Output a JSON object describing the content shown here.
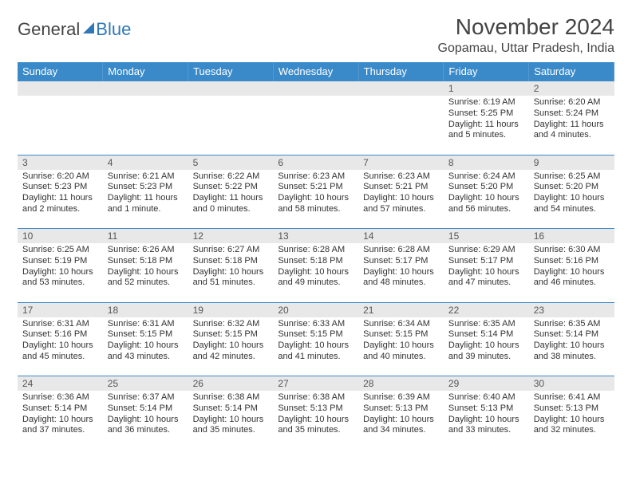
{
  "brand": {
    "part1": "General",
    "part2": "Blue"
  },
  "title": "November 2024",
  "title_fontsize": 28,
  "location": "Gopamau, Uttar Pradesh, India",
  "location_fontsize": 16,
  "colors": {
    "header_bg": "#3a8ac9",
    "header_fg": "#ffffff",
    "daynum_bg": "#e8e8e8",
    "border": "#3a8ac9",
    "text": "#333333",
    "brand_gray": "#444444",
    "brand_blue": "#2f78b7"
  },
  "day_header_fontsize": 13,
  "cell_fontsize": 11,
  "day_headers": [
    "Sunday",
    "Monday",
    "Tuesday",
    "Wednesday",
    "Thursday",
    "Friday",
    "Saturday"
  ],
  "weeks": [
    [
      null,
      null,
      null,
      null,
      null,
      {
        "n": "1",
        "sr": "6:19 AM",
        "ss": "5:25 PM",
        "dl": "11 hours and 5 minutes."
      },
      {
        "n": "2",
        "sr": "6:20 AM",
        "ss": "5:24 PM",
        "dl": "11 hours and 4 minutes."
      }
    ],
    [
      {
        "n": "3",
        "sr": "6:20 AM",
        "ss": "5:23 PM",
        "dl": "11 hours and 2 minutes."
      },
      {
        "n": "4",
        "sr": "6:21 AM",
        "ss": "5:23 PM",
        "dl": "11 hours and 1 minute."
      },
      {
        "n": "5",
        "sr": "6:22 AM",
        "ss": "5:22 PM",
        "dl": "11 hours and 0 minutes."
      },
      {
        "n": "6",
        "sr": "6:23 AM",
        "ss": "5:21 PM",
        "dl": "10 hours and 58 minutes."
      },
      {
        "n": "7",
        "sr": "6:23 AM",
        "ss": "5:21 PM",
        "dl": "10 hours and 57 minutes."
      },
      {
        "n": "8",
        "sr": "6:24 AM",
        "ss": "5:20 PM",
        "dl": "10 hours and 56 minutes."
      },
      {
        "n": "9",
        "sr": "6:25 AM",
        "ss": "5:20 PM",
        "dl": "10 hours and 54 minutes."
      }
    ],
    [
      {
        "n": "10",
        "sr": "6:25 AM",
        "ss": "5:19 PM",
        "dl": "10 hours and 53 minutes."
      },
      {
        "n": "11",
        "sr": "6:26 AM",
        "ss": "5:18 PM",
        "dl": "10 hours and 52 minutes."
      },
      {
        "n": "12",
        "sr": "6:27 AM",
        "ss": "5:18 PM",
        "dl": "10 hours and 51 minutes."
      },
      {
        "n": "13",
        "sr": "6:28 AM",
        "ss": "5:18 PM",
        "dl": "10 hours and 49 minutes."
      },
      {
        "n": "14",
        "sr": "6:28 AM",
        "ss": "5:17 PM",
        "dl": "10 hours and 48 minutes."
      },
      {
        "n": "15",
        "sr": "6:29 AM",
        "ss": "5:17 PM",
        "dl": "10 hours and 47 minutes."
      },
      {
        "n": "16",
        "sr": "6:30 AM",
        "ss": "5:16 PM",
        "dl": "10 hours and 46 minutes."
      }
    ],
    [
      {
        "n": "17",
        "sr": "6:31 AM",
        "ss": "5:16 PM",
        "dl": "10 hours and 45 minutes."
      },
      {
        "n": "18",
        "sr": "6:31 AM",
        "ss": "5:15 PM",
        "dl": "10 hours and 43 minutes."
      },
      {
        "n": "19",
        "sr": "6:32 AM",
        "ss": "5:15 PM",
        "dl": "10 hours and 42 minutes."
      },
      {
        "n": "20",
        "sr": "6:33 AM",
        "ss": "5:15 PM",
        "dl": "10 hours and 41 minutes."
      },
      {
        "n": "21",
        "sr": "6:34 AM",
        "ss": "5:15 PM",
        "dl": "10 hours and 40 minutes."
      },
      {
        "n": "22",
        "sr": "6:35 AM",
        "ss": "5:14 PM",
        "dl": "10 hours and 39 minutes."
      },
      {
        "n": "23",
        "sr": "6:35 AM",
        "ss": "5:14 PM",
        "dl": "10 hours and 38 minutes."
      }
    ],
    [
      {
        "n": "24",
        "sr": "6:36 AM",
        "ss": "5:14 PM",
        "dl": "10 hours and 37 minutes."
      },
      {
        "n": "25",
        "sr": "6:37 AM",
        "ss": "5:14 PM",
        "dl": "10 hours and 36 minutes."
      },
      {
        "n": "26",
        "sr": "6:38 AM",
        "ss": "5:14 PM",
        "dl": "10 hours and 35 minutes."
      },
      {
        "n": "27",
        "sr": "6:38 AM",
        "ss": "5:13 PM",
        "dl": "10 hours and 35 minutes."
      },
      {
        "n": "28",
        "sr": "6:39 AM",
        "ss": "5:13 PM",
        "dl": "10 hours and 34 minutes."
      },
      {
        "n": "29",
        "sr": "6:40 AM",
        "ss": "5:13 PM",
        "dl": "10 hours and 33 minutes."
      },
      {
        "n": "30",
        "sr": "6:41 AM",
        "ss": "5:13 PM",
        "dl": "10 hours and 32 minutes."
      }
    ]
  ],
  "labels": {
    "sunrise": "Sunrise:",
    "sunset": "Sunset:",
    "daylight": "Daylight:"
  }
}
